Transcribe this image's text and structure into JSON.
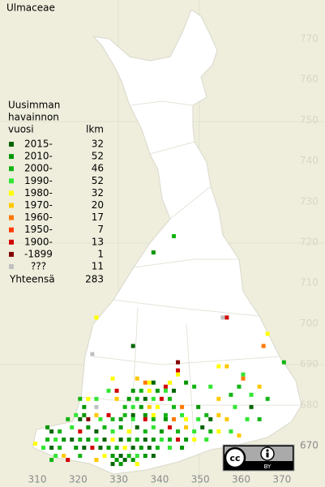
{
  "title": "Ulmaceae",
  "legend": {
    "header": [
      "Uusimman",
      "havainnon",
      "vuosi"
    ],
    "count_header": "lkm",
    "rows": [
      {
        "label": "2015-",
        "count": 32,
        "color": "#006400"
      },
      {
        "label": "2010-",
        "count": 52,
        "color": "#009600"
      },
      {
        "label": "2000-",
        "count": 46,
        "color": "#14b414"
      },
      {
        "label": "1990-",
        "count": 52,
        "color": "#32e632"
      },
      {
        "label": "1980-",
        "count": 32,
        "color": "#ffff00"
      },
      {
        "label": "1970-",
        "count": 20,
        "color": "#ffc800"
      },
      {
        "label": "1960-",
        "count": 17,
        "color": "#ff7800"
      },
      {
        "label": "1950-",
        "count": 7,
        "color": "#ff3c00"
      },
      {
        "label": "1900-",
        "count": 13,
        "color": "#d20000"
      },
      {
        "label": "-1899",
        "count": 1,
        "color": "#820000"
      },
      {
        "label": "???",
        "count": 11,
        "color": "#c0c0c0"
      }
    ],
    "total_label": "Yhteensä",
    "total": 283
  },
  "map": {
    "xticks": [
      310,
      320,
      330,
      340,
      350,
      360,
      370
    ],
    "yticks": [
      670,
      680,
      690,
      700,
      710,
      720,
      730,
      740,
      750,
      760,
      770
    ],
    "squares": [
      [
        343,
        721,
        2
      ],
      [
        338,
        717,
        1
      ],
      [
        324,
        701,
        4
      ],
      [
        356,
        701,
        8
      ],
      [
        355,
        701,
        10
      ],
      [
        366,
        697,
        4
      ],
      [
        365,
        694,
        6
      ],
      [
        333,
        694,
        0
      ],
      [
        323,
        692,
        10
      ],
      [
        344,
        690,
        9
      ],
      [
        370,
        690,
        2
      ],
      [
        354,
        689,
        4
      ],
      [
        356,
        689,
        5
      ],
      [
        360,
        687,
        3
      ],
      [
        360,
        686,
        6
      ],
      [
        344,
        688,
        8
      ],
      [
        344,
        687,
        4
      ],
      [
        328,
        686,
        4
      ],
      [
        334,
        686,
        5
      ],
      [
        336,
        685,
        6
      ],
      [
        337,
        685,
        4
      ],
      [
        338,
        685,
        0
      ],
      [
        341,
        684,
        8
      ],
      [
        342,
        685,
        4
      ],
      [
        346,
        685,
        1
      ],
      [
        348,
        684,
        2
      ],
      [
        352,
        684,
        3
      ],
      [
        359,
        684,
        2
      ],
      [
        364,
        684,
        5
      ],
      [
        327,
        683,
        3
      ],
      [
        329,
        683,
        8
      ],
      [
        333,
        683,
        1
      ],
      [
        335,
        683,
        2
      ],
      [
        337,
        683,
        4
      ],
      [
        339,
        683,
        1
      ],
      [
        341,
        683,
        3
      ],
      [
        343,
        683,
        0
      ],
      [
        357,
        682,
        2
      ],
      [
        362,
        682,
        3
      ],
      [
        320,
        681,
        2
      ],
      [
        322,
        681,
        4
      ],
      [
        324,
        681,
        3
      ],
      [
        329,
        681,
        5
      ],
      [
        332,
        681,
        1
      ],
      [
        334,
        681,
        2
      ],
      [
        336,
        681,
        0
      ],
      [
        338,
        681,
        3
      ],
      [
        340,
        681,
        8
      ],
      [
        342,
        681,
        2
      ],
      [
        354,
        681,
        5
      ],
      [
        366,
        681,
        2
      ],
      [
        321,
        679,
        1
      ],
      [
        324,
        679,
        10
      ],
      [
        331,
        679,
        2
      ],
      [
        333,
        679,
        3
      ],
      [
        335,
        679,
        1
      ],
      [
        337,
        679,
        5
      ],
      [
        339,
        679,
        4
      ],
      [
        343,
        679,
        2
      ],
      [
        345,
        679,
        6
      ],
      [
        349,
        679,
        1
      ],
      [
        358,
        679,
        3
      ],
      [
        362,
        679,
        0
      ],
      [
        319,
        677,
        3
      ],
      [
        321,
        677,
        1
      ],
      [
        324,
        677,
        5
      ],
      [
        327,
        677,
        8
      ],
      [
        331,
        677,
        2
      ],
      [
        333,
        677,
        0
      ],
      [
        336,
        677,
        1
      ],
      [
        338,
        677,
        4
      ],
      [
        341,
        677,
        2
      ],
      [
        345,
        677,
        3
      ],
      [
        351,
        677,
        2
      ],
      [
        354,
        677,
        5
      ],
      [
        317,
        676,
        2
      ],
      [
        320,
        676,
        0
      ],
      [
        322,
        676,
        9
      ],
      [
        325,
        676,
        3
      ],
      [
        328,
        676,
        2
      ],
      [
        330,
        676,
        1
      ],
      [
        333,
        676,
        3
      ],
      [
        336,
        676,
        8
      ],
      [
        338,
        676,
        2
      ],
      [
        341,
        676,
        1
      ],
      [
        343,
        676,
        6
      ],
      [
        346,
        676,
        4
      ],
      [
        349,
        676,
        3
      ],
      [
        352,
        676,
        0
      ],
      [
        356,
        676,
        5
      ],
      [
        361,
        676,
        3
      ],
      [
        364,
        676,
        2
      ],
      [
        312,
        674,
        1
      ],
      [
        313,
        673,
        0
      ],
      [
        315,
        673,
        2
      ],
      [
        318,
        674,
        3
      ],
      [
        320,
        673,
        8
      ],
      [
        322,
        674,
        1
      ],
      [
        324,
        673,
        0
      ],
      [
        326,
        674,
        2
      ],
      [
        328,
        673,
        3
      ],
      [
        330,
        674,
        1
      ],
      [
        332,
        673,
        4
      ],
      [
        334,
        674,
        0
      ],
      [
        336,
        673,
        2
      ],
      [
        338,
        674,
        3
      ],
      [
        340,
        673,
        1
      ],
      [
        342,
        674,
        8
      ],
      [
        344,
        673,
        2
      ],
      [
        346,
        674,
        5
      ],
      [
        348,
        673,
        3
      ],
      [
        350,
        674,
        0
      ],
      [
        352,
        673,
        2
      ],
      [
        354,
        673,
        4
      ],
      [
        357,
        673,
        3
      ],
      [
        359,
        672,
        5
      ],
      [
        312,
        671,
        2
      ],
      [
        314,
        671,
        3
      ],
      [
        316,
        671,
        1
      ],
      [
        318,
        671,
        0
      ],
      [
        320,
        671,
        2
      ],
      [
        322,
        671,
        1
      ],
      [
        324,
        671,
        3
      ],
      [
        326,
        671,
        0
      ],
      [
        328,
        671,
        4
      ],
      [
        330,
        671,
        0
      ],
      [
        332,
        671,
        1
      ],
      [
        334,
        671,
        2
      ],
      [
        336,
        671,
        0
      ],
      [
        338,
        671,
        1
      ],
      [
        340,
        671,
        3
      ],
      [
        342,
        671,
        2
      ],
      [
        344,
        671,
        8
      ],
      [
        346,
        671,
        1
      ],
      [
        348,
        671,
        4
      ],
      [
        351,
        671,
        3
      ],
      [
        309,
        670,
        4
      ],
      [
        311,
        669,
        3
      ],
      [
        313,
        669,
        0
      ],
      [
        315,
        669,
        2
      ],
      [
        319,
        669,
        1
      ],
      [
        321,
        669,
        0
      ],
      [
        323,
        669,
        8
      ],
      [
        325,
        669,
        0
      ],
      [
        327,
        669,
        1
      ],
      [
        329,
        669,
        2
      ],
      [
        331,
        669,
        4
      ],
      [
        333,
        669,
        0
      ],
      [
        335,
        669,
        1
      ],
      [
        337,
        669,
        0
      ],
      [
        339,
        669,
        2
      ],
      [
        342,
        669,
        3
      ],
      [
        345,
        669,
        1
      ],
      [
        314,
        667,
        3
      ],
      [
        316,
        667,
        5
      ],
      [
        320,
        667,
        2
      ],
      [
        326,
        667,
        4
      ],
      [
        328,
        667,
        1
      ],
      [
        330,
        667,
        0
      ],
      [
        332,
        667,
        2
      ],
      [
        334,
        667,
        3
      ],
      [
        336,
        667,
        1
      ],
      [
        338,
        667,
        0
      ],
      [
        313,
        666,
        2
      ],
      [
        317,
        666,
        8
      ],
      [
        324,
        666,
        5
      ],
      [
        329,
        666,
        1
      ],
      [
        331,
        666,
        0
      ],
      [
        333,
        666,
        1
      ],
      [
        328,
        665,
        0
      ],
      [
        330,
        665,
        1
      ],
      [
        334,
        665,
        4
      ]
    ]
  },
  "license": {
    "cc": "cc",
    "label": "BY"
  }
}
